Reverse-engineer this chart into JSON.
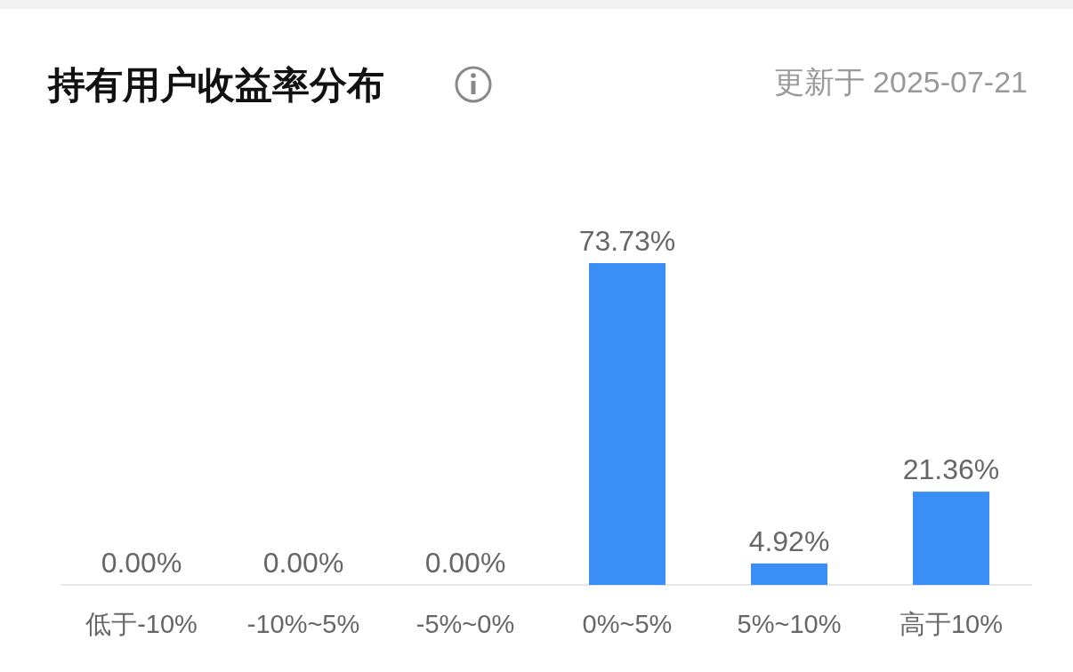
{
  "chart_data": {
    "type": "bar",
    "title": "持有用户收益率分布",
    "annotations": [
      "更新于 2025-07-21"
    ],
    "categories": [
      "低于-10%",
      "-10%~5%",
      "-5%~0%",
      "0%~5%",
      "5%~10%",
      "高于10%"
    ],
    "values": [
      0,
      0,
      0,
      73.73,
      4.92,
      21.36
    ],
    "value_labels": [
      "0.00%",
      "0.00%",
      "0.00%",
      "73.73%",
      "4.92%",
      "21.36%"
    ],
    "color": "#3a8ef6"
  }
}
